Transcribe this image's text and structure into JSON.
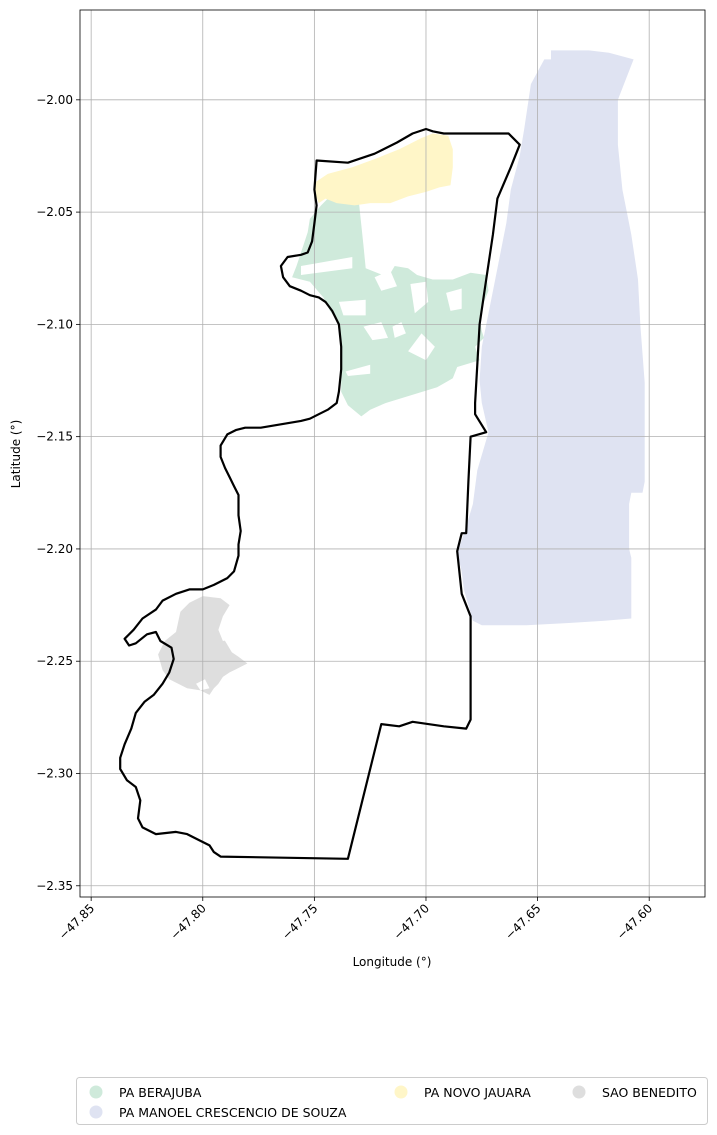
{
  "chart_data": {
    "type": "map",
    "xlabel": "Longitude (°)",
    "ylabel": "Latitude (°)",
    "xlim": [
      -47.855,
      -47.575
    ],
    "ylim": [
      -2.355,
      -1.96
    ],
    "grid": true,
    "xticks": [
      {
        "value": -47.85,
        "label": "−47.85"
      },
      {
        "value": -47.8,
        "label": "−47.80"
      },
      {
        "value": -47.75,
        "label": "−47.75"
      },
      {
        "value": -47.7,
        "label": "−47.70"
      },
      {
        "value": -47.65,
        "label": "−47.65"
      },
      {
        "value": -47.6,
        "label": "−47.60"
      }
    ],
    "yticks": [
      {
        "value": -2.0,
        "label": "−2.00"
      },
      {
        "value": -2.05,
        "label": "−2.05"
      },
      {
        "value": -2.1,
        "label": "−2.10"
      },
      {
        "value": -2.15,
        "label": "−2.15"
      },
      {
        "value": -2.2,
        "label": "−2.20"
      },
      {
        "value": -2.25,
        "label": "−2.25"
      },
      {
        "value": -2.3,
        "label": "−2.30"
      },
      {
        "value": -2.35,
        "label": "−2.35"
      }
    ],
    "legend": {
      "placement": "bottom",
      "items": [
        {
          "label": "PA BERAJUBA",
          "color": "#cfeadb"
        },
        {
          "label": "PA MANOEL CRESCENCIO DE SOUZA",
          "color": "#dfe3f2"
        },
        {
          "label": "PA NOVO JAUARA",
          "color": "#fff6c8"
        },
        {
          "label": "SAO BENEDITO",
          "color": "#dedede"
        }
      ]
    },
    "regions": [
      {
        "name": "PA MANOEL CRESCENCIO DE SOUZA",
        "color": "#dfe3f2",
        "polygon": [
          [
            -47.653,
            -1.993
          ],
          [
            -47.647,
            -1.982
          ],
          [
            -47.644,
            -1.982
          ],
          [
            -47.644,
            -1.978
          ],
          [
            -47.627,
            -1.978
          ],
          [
            -47.618,
            -1.979
          ],
          [
            -47.607,
            -1.982
          ],
          [
            -47.614,
            -2.0
          ],
          [
            -47.614,
            -2.02
          ],
          [
            -47.612,
            -2.04
          ],
          [
            -47.608,
            -2.06
          ],
          [
            -47.605,
            -2.08
          ],
          [
            -47.604,
            -2.1
          ],
          [
            -47.603,
            -2.113
          ],
          [
            -47.602,
            -2.126
          ],
          [
            -47.602,
            -2.15
          ],
          [
            -47.602,
            -2.17
          ],
          [
            -47.603,
            -2.175
          ],
          [
            -47.608,
            -2.175
          ],
          [
            -47.609,
            -2.18
          ],
          [
            -47.609,
            -2.2
          ],
          [
            -47.608,
            -2.204
          ],
          [
            -47.608,
            -2.231
          ],
          [
            -47.62,
            -2.232
          ],
          [
            -47.636,
            -2.233
          ],
          [
            -47.655,
            -2.234
          ],
          [
            -47.663,
            -2.234
          ],
          [
            -47.664,
            -2.234
          ],
          [
            -47.675,
            -2.234
          ],
          [
            -47.679,
            -2.232
          ],
          [
            -47.681,
            -2.225
          ],
          [
            -47.683,
            -2.218
          ],
          [
            -47.684,
            -2.21
          ],
          [
            -47.686,
            -2.202
          ],
          [
            -47.682,
            -2.19
          ],
          [
            -47.679,
            -2.18
          ],
          [
            -47.677,
            -2.165
          ],
          [
            -47.672,
            -2.148
          ],
          [
            -47.675,
            -2.135
          ],
          [
            -47.676,
            -2.125
          ],
          [
            -47.675,
            -2.11
          ],
          [
            -47.672,
            -2.095
          ],
          [
            -47.669,
            -2.08
          ],
          [
            -47.664,
            -2.055
          ],
          [
            -47.662,
            -2.04
          ],
          [
            -47.658,
            -2.025
          ],
          [
            -47.656,
            -2.013
          ],
          [
            -47.653,
            -1.993
          ]
        ]
      },
      {
        "name": "PA BERAJUBA",
        "color": "#cfeadb",
        "polygon": [
          [
            -47.747,
            -2.047
          ],
          [
            -47.742,
            -2.042
          ],
          [
            -47.737,
            -2.046
          ],
          [
            -47.73,
            -2.046
          ],
          [
            -47.728,
            -2.065
          ],
          [
            -47.727,
            -2.075
          ],
          [
            -47.717,
            -2.079
          ],
          [
            -47.714,
            -2.074
          ],
          [
            -47.708,
            -2.075
          ],
          [
            -47.704,
            -2.078
          ],
          [
            -47.697,
            -2.08
          ],
          [
            -47.688,
            -2.08
          ],
          [
            -47.68,
            -2.077
          ],
          [
            -47.673,
            -2.078
          ],
          [
            -47.672,
            -2.085
          ],
          [
            -47.674,
            -2.09
          ],
          [
            -47.676,
            -2.097
          ],
          [
            -47.675,
            -2.103
          ],
          [
            -47.674,
            -2.106
          ],
          [
            -47.678,
            -2.11
          ],
          [
            -47.676,
            -2.116
          ],
          [
            -47.686,
            -2.119
          ],
          [
            -47.688,
            -2.124
          ],
          [
            -47.695,
            -2.128
          ],
          [
            -47.718,
            -2.135
          ],
          [
            -47.725,
            -2.138
          ],
          [
            -47.729,
            -2.141
          ],
          [
            -47.735,
            -2.136
          ],
          [
            -47.738,
            -2.13
          ],
          [
            -47.738,
            -2.12
          ],
          [
            -47.738,
            -2.108
          ],
          [
            -47.74,
            -2.098
          ],
          [
            -47.743,
            -2.094
          ],
          [
            -47.746,
            -2.088
          ],
          [
            -47.752,
            -2.081
          ],
          [
            -47.76,
            -2.079
          ],
          [
            -47.758,
            -2.074
          ],
          [
            -47.756,
            -2.068
          ],
          [
            -47.753,
            -2.059
          ],
          [
            -47.752,
            -2.053
          ],
          [
            -47.747,
            -2.047
          ]
        ]
      },
      {
        "name": "PA NOVO JAUARA",
        "color": "#fff6c8",
        "polygon": [
          [
            -47.75,
            -2.037
          ],
          [
            -47.744,
            -2.033
          ],
          [
            -47.733,
            -2.03
          ],
          [
            -47.722,
            -2.026
          ],
          [
            -47.712,
            -2.022
          ],
          [
            -47.702,
            -2.017
          ],
          [
            -47.697,
            -2.015
          ],
          [
            -47.69,
            -2.016
          ],
          [
            -47.688,
            -2.022
          ],
          [
            -47.688,
            -2.03
          ],
          [
            -47.689,
            -2.038
          ],
          [
            -47.694,
            -2.039
          ],
          [
            -47.7,
            -2.041
          ],
          [
            -47.708,
            -2.043
          ],
          [
            -47.716,
            -2.046
          ],
          [
            -47.725,
            -2.046
          ],
          [
            -47.732,
            -2.047
          ],
          [
            -47.74,
            -2.046
          ],
          [
            -47.745,
            -2.044
          ],
          [
            -47.748,
            -2.046
          ],
          [
            -47.75,
            -2.041
          ],
          [
            -47.75,
            -2.037
          ]
        ]
      },
      {
        "name": "SAO BENEDITO",
        "color": "#dedede",
        "polygon": [
          [
            -47.81,
            -2.228
          ],
          [
            -47.806,
            -2.224
          ],
          [
            -47.8,
            -2.221
          ],
          [
            -47.792,
            -2.222
          ],
          [
            -47.788,
            -2.225
          ],
          [
            -47.791,
            -2.23
          ],
          [
            -47.793,
            -2.236
          ],
          [
            -47.79,
            -2.241
          ],
          [
            -47.787,
            -2.246
          ],
          [
            -47.784,
            -2.248
          ],
          [
            -47.78,
            -2.251
          ],
          [
            -47.786,
            -2.254
          ],
          [
            -47.788,
            -2.255
          ],
          [
            -47.791,
            -2.257
          ],
          [
            -47.793,
            -2.26
          ],
          [
            -47.795,
            -2.262
          ],
          [
            -47.797,
            -2.265
          ],
          [
            -47.801,
            -2.263
          ],
          [
            -47.807,
            -2.262
          ],
          [
            -47.815,
            -2.258
          ],
          [
            -47.818,
            -2.254
          ],
          [
            -47.82,
            -2.247
          ],
          [
            -47.817,
            -2.241
          ],
          [
            -47.812,
            -2.237
          ],
          [
            -47.81,
            -2.228
          ]
        ]
      }
    ],
    "holes": [
      [
        [
          -47.756,
          -2.074
        ],
        [
          -47.733,
          -2.07
        ],
        [
          -47.733,
          -2.075
        ],
        [
          -47.756,
          -2.078
        ]
      ],
      [
        [
          -47.723,
          -2.079
        ],
        [
          -47.716,
          -2.076
        ],
        [
          -47.713,
          -2.083
        ],
        [
          -47.72,
          -2.085
        ]
      ],
      [
        [
          -47.707,
          -2.082
        ],
        [
          -47.7,
          -2.081
        ],
        [
          -47.699,
          -2.09
        ],
        [
          -47.705,
          -2.095
        ]
      ],
      [
        [
          -47.739,
          -2.09
        ],
        [
          -47.727,
          -2.089
        ],
        [
          -47.727,
          -2.096
        ],
        [
          -47.737,
          -2.096
        ]
      ],
      [
        [
          -47.691,
          -2.086
        ],
        [
          -47.684,
          -2.084
        ],
        [
          -47.684,
          -2.093
        ],
        [
          -47.689,
          -2.094
        ]
      ],
      [
        [
          -47.728,
          -2.101
        ],
        [
          -47.72,
          -2.099
        ],
        [
          -47.717,
          -2.106
        ],
        [
          -47.724,
          -2.107
        ]
      ],
      [
        [
          -47.708,
          -2.112
        ],
        [
          -47.702,
          -2.104
        ],
        [
          -47.696,
          -2.11
        ],
        [
          -47.7,
          -2.116
        ]
      ],
      [
        [
          -47.715,
          -2.101
        ],
        [
          -47.711,
          -2.099
        ],
        [
          -47.709,
          -2.104
        ],
        [
          -47.714,
          -2.106
        ]
      ],
      [
        [
          -47.736,
          -2.121
        ],
        [
          -47.725,
          -2.118
        ],
        [
          -47.725,
          -2.122
        ],
        [
          -47.735,
          -2.123
        ]
      ],
      [
        [
          -47.793,
          -2.236
        ],
        [
          -47.788,
          -2.237
        ],
        [
          -47.786,
          -2.24
        ],
        [
          -47.791,
          -2.241
        ]
      ],
      [
        [
          -47.803,
          -2.26
        ],
        [
          -47.799,
          -2.258
        ],
        [
          -47.797,
          -2.262
        ],
        [
          -47.801,
          -2.263
        ]
      ]
    ],
    "boundary": [
      [
        -47.749,
        -2.027
      ],
      [
        -47.735,
        -2.028
      ],
      [
        -47.723,
        -2.024
      ],
      [
        -47.713,
        -2.019
      ],
      [
        -47.706,
        -2.015
      ],
      [
        -47.7,
        -2.013
      ],
      [
        -47.697,
        -2.014
      ],
      [
        -47.692,
        -2.015
      ],
      [
        -47.663,
        -2.015
      ],
      [
        -47.658,
        -2.02
      ],
      [
        -47.662,
        -2.03
      ],
      [
        -47.668,
        -2.044
      ],
      [
        -47.67,
        -2.06
      ],
      [
        -47.673,
        -2.08
      ],
      [
        -47.676,
        -2.1
      ],
      [
        -47.677,
        -2.118
      ],
      [
        -47.678,
        -2.135
      ],
      [
        -47.678,
        -2.14
      ],
      [
        -47.673,
        -2.148
      ],
      [
        -47.68,
        -2.15
      ],
      [
        -47.681,
        -2.17
      ],
      [
        -47.682,
        -2.193
      ],
      [
        -47.684,
        -2.193
      ],
      [
        -47.686,
        -2.201
      ],
      [
        -47.684,
        -2.22
      ],
      [
        -47.68,
        -2.23
      ],
      [
        -47.68,
        -2.25
      ],
      [
        -47.68,
        -2.276
      ],
      [
        -47.682,
        -2.28
      ],
      [
        -47.692,
        -2.279
      ],
      [
        -47.706,
        -2.277
      ],
      [
        -47.712,
        -2.279
      ],
      [
        -47.72,
        -2.278
      ],
      [
        -47.735,
        -2.338
      ],
      [
        -47.792,
        -2.337
      ],
      [
        -47.795,
        -2.335
      ],
      [
        -47.797,
        -2.332
      ],
      [
        -47.801,
        -2.33
      ],
      [
        -47.807,
        -2.327
      ],
      [
        -47.812,
        -2.326
      ],
      [
        -47.821,
        -2.327
      ],
      [
        -47.827,
        -2.324
      ],
      [
        -47.829,
        -2.32
      ],
      [
        -47.828,
        -2.312
      ],
      [
        -47.83,
        -2.306
      ],
      [
        -47.834,
        -2.303
      ],
      [
        -47.837,
        -2.298
      ],
      [
        -47.837,
        -2.293
      ],
      [
        -47.835,
        -2.287
      ],
      [
        -47.832,
        -2.28
      ],
      [
        -47.83,
        -2.273
      ],
      [
        -47.826,
        -2.268
      ],
      [
        -47.822,
        -2.265
      ],
      [
        -47.818,
        -2.26
      ],
      [
        -47.815,
        -2.255
      ],
      [
        -47.813,
        -2.249
      ],
      [
        -47.814,
        -2.244
      ],
      [
        -47.819,
        -2.241
      ],
      [
        -47.821,
        -2.237
      ],
      [
        -47.825,
        -2.238
      ],
      [
        -47.83,
        -2.242
      ],
      [
        -47.833,
        -2.243
      ],
      [
        -47.835,
        -2.24
      ],
      [
        -47.831,
        -2.236
      ],
      [
        -47.827,
        -2.231
      ],
      [
        -47.821,
        -2.227
      ],
      [
        -47.818,
        -2.223
      ],
      [
        -47.812,
        -2.22
      ],
      [
        -47.806,
        -2.218
      ],
      [
        -47.8,
        -2.218
      ],
      [
        -47.795,
        -2.216
      ],
      [
        -47.789,
        -2.213
      ],
      [
        -47.786,
        -2.21
      ],
      [
        -47.784,
        -2.203
      ],
      [
        -47.784,
        -2.198
      ],
      [
        -47.783,
        -2.192
      ],
      [
        -47.784,
        -2.185
      ],
      [
        -47.784,
        -2.176
      ],
      [
        -47.786,
        -2.172
      ],
      [
        -47.788,
        -2.168
      ],
      [
        -47.79,
        -2.164
      ],
      [
        -47.792,
        -2.159
      ],
      [
        -47.792,
        -2.154
      ],
      [
        -47.789,
        -2.149
      ],
      [
        -47.785,
        -2.147
      ],
      [
        -47.781,
        -2.146
      ],
      [
        -47.774,
        -2.146
      ],
      [
        -47.768,
        -2.145
      ],
      [
        -47.762,
        -2.144
      ],
      [
        -47.756,
        -2.143
      ],
      [
        -47.752,
        -2.142
      ],
      [
        -47.748,
        -2.14
      ],
      [
        -47.744,
        -2.138
      ],
      [
        -47.74,
        -2.135
      ],
      [
        -47.739,
        -2.13
      ],
      [
        -47.738,
        -2.12
      ],
      [
        -47.738,
        -2.11
      ],
      [
        -47.739,
        -2.1
      ],
      [
        -47.742,
        -2.094
      ],
      [
        -47.745,
        -2.09
      ],
      [
        -47.748,
        -2.088
      ],
      [
        -47.752,
        -2.087
      ],
      [
        -47.756,
        -2.085
      ],
      [
        -47.761,
        -2.083
      ],
      [
        -47.764,
        -2.079
      ],
      [
        -47.765,
        -2.074
      ],
      [
        -47.762,
        -2.07
      ],
      [
        -47.756,
        -2.069
      ],
      [
        -47.753,
        -2.068
      ],
      [
        -47.751,
        -2.063
      ],
      [
        -47.75,
        -2.055
      ],
      [
        -47.749,
        -2.047
      ],
      [
        -47.75,
        -2.04
      ],
      [
        -47.749,
        -2.027
      ]
    ]
  }
}
